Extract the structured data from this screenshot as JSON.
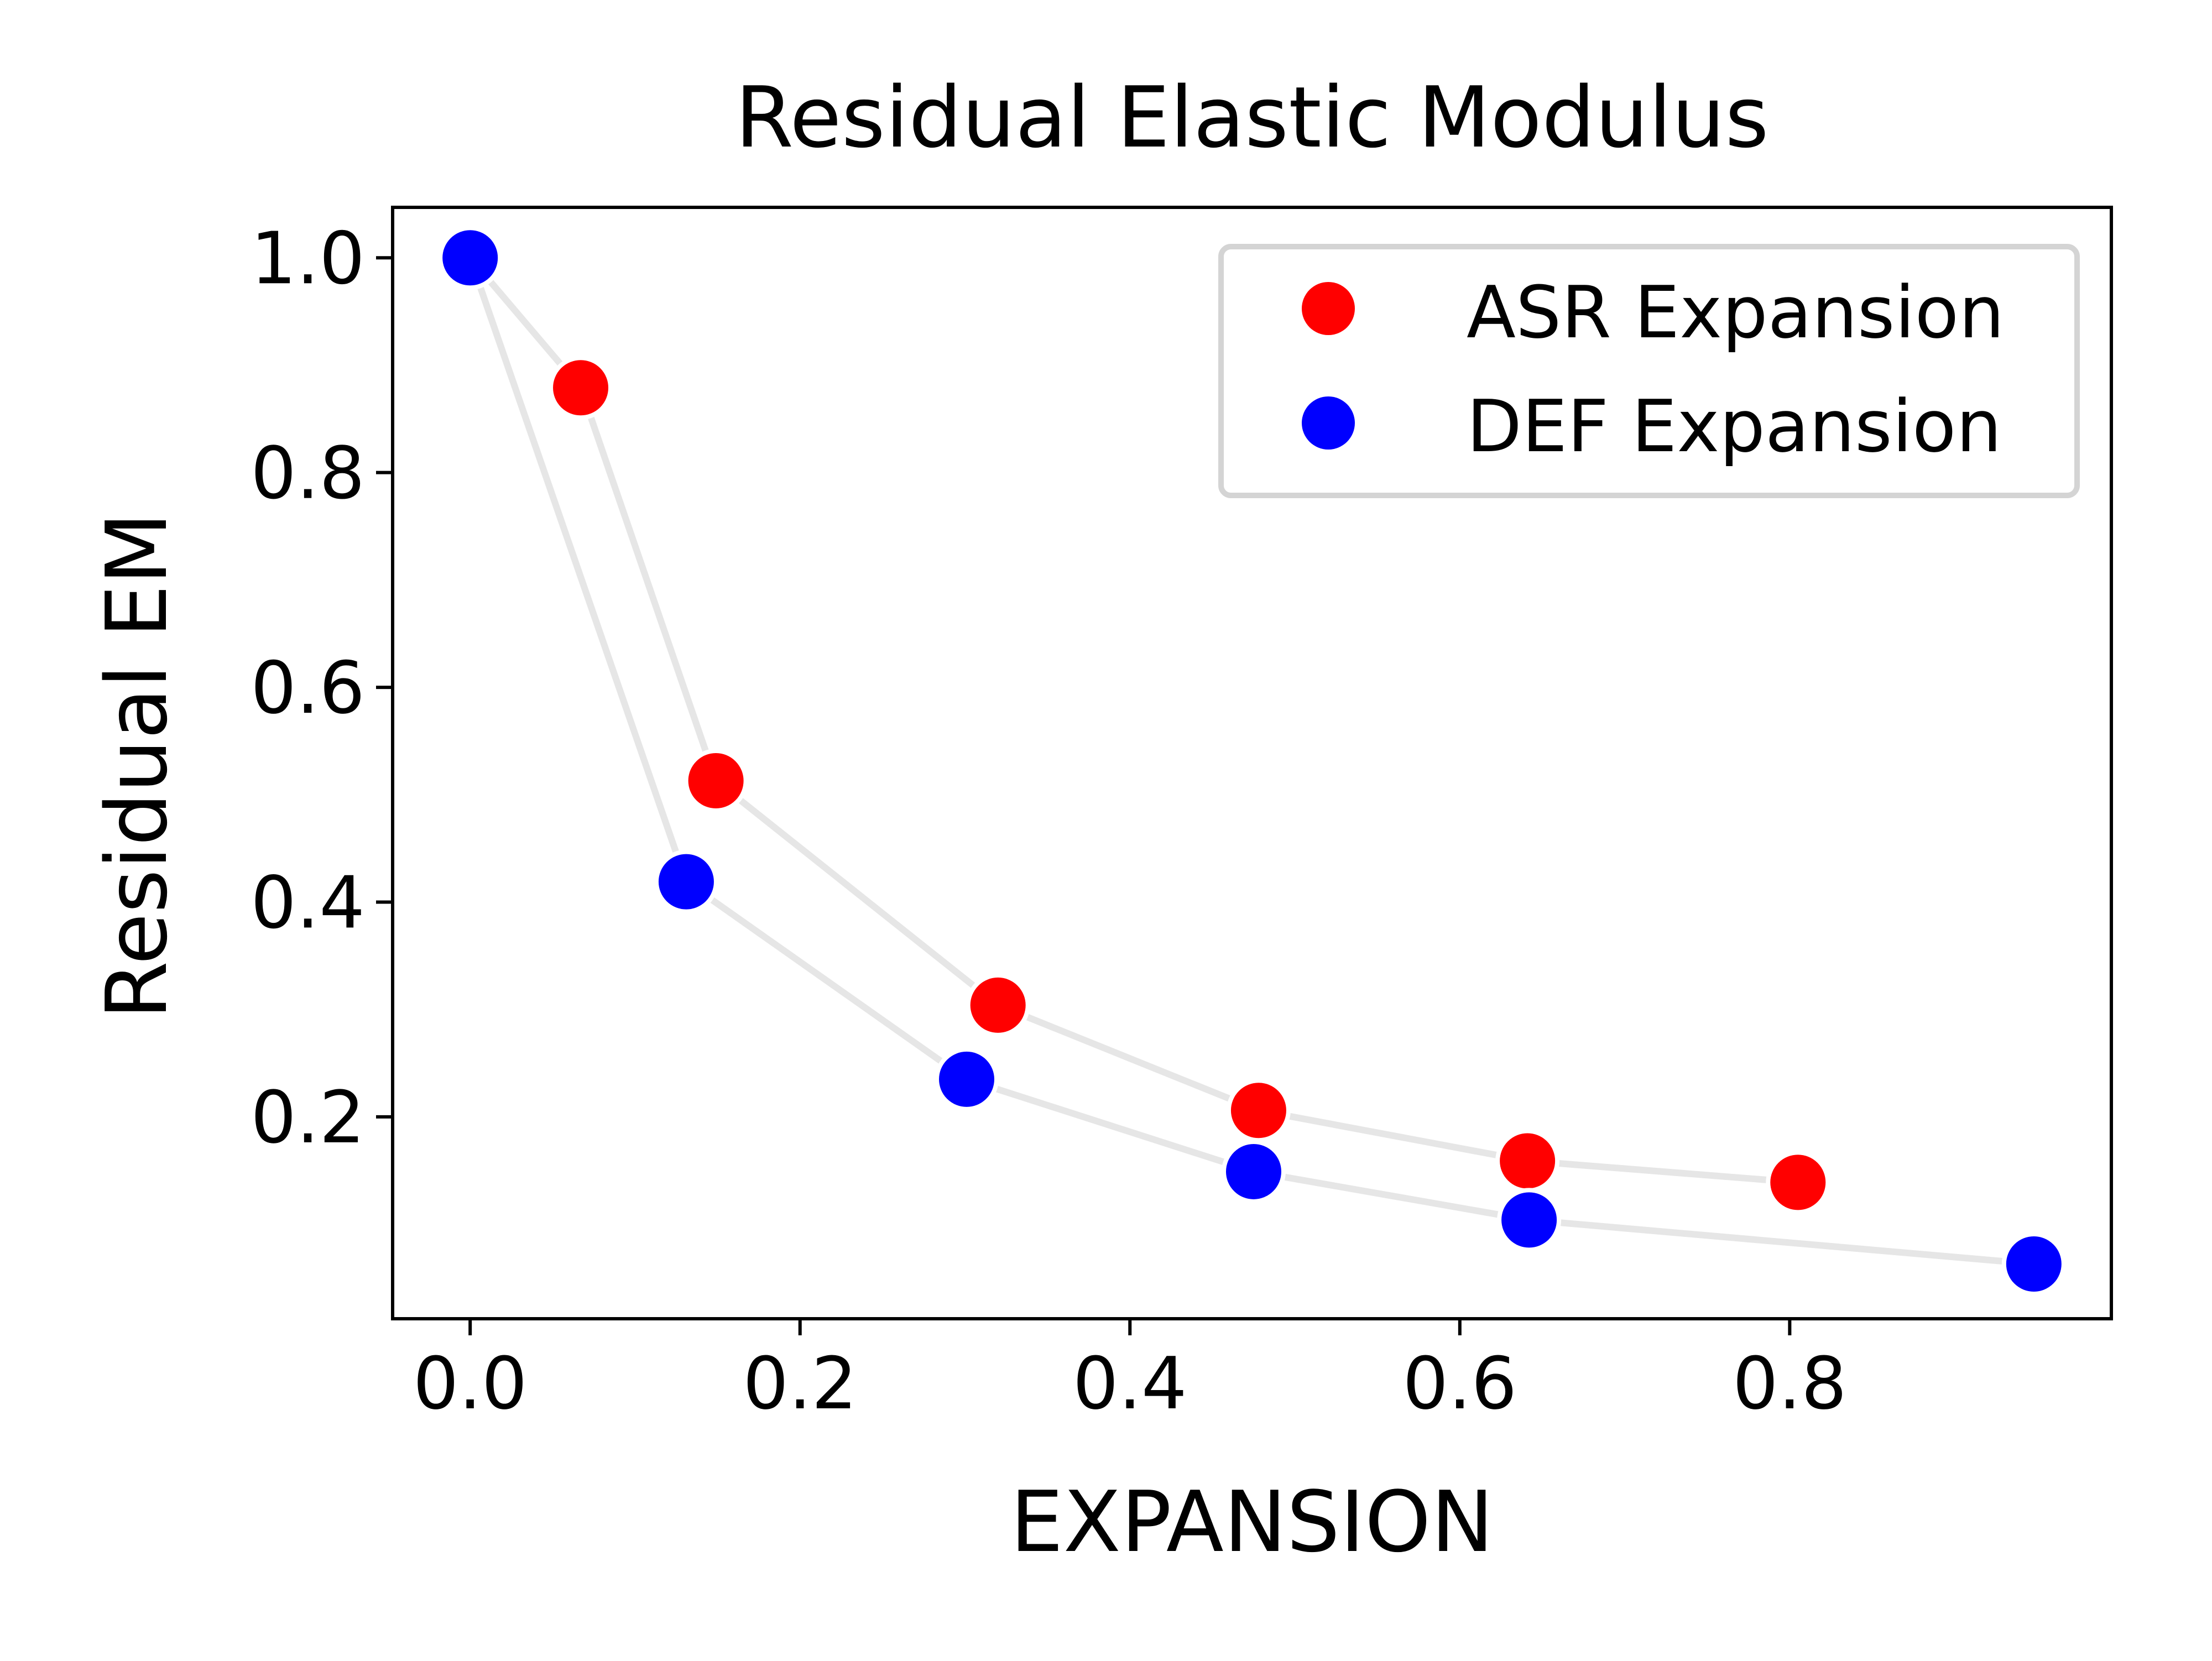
{
  "chart_data": {
    "type": "scatter",
    "title": "Residual Elastic Modulus",
    "xlabel": "EXPANSION",
    "ylabel": "Residual EM",
    "xlim": [
      -0.047,
      0.995
    ],
    "ylim": [
      0.012,
      1.047
    ],
    "x_ticks": [
      0.0,
      0.2,
      0.4,
      0.6,
      0.8
    ],
    "x_tick_labels": [
      "0.0",
      "0.2",
      "0.4",
      "0.6",
      "0.8"
    ],
    "y_ticks": [
      0.2,
      0.4,
      0.6,
      0.8,
      1.0
    ],
    "y_tick_labels": [
      "0.2",
      "0.4",
      "0.6",
      "0.8",
      "1.0"
    ],
    "grid": false,
    "legend_position": "top-right",
    "connecting_line_color": "#e6e6e6",
    "series": [
      {
        "name": "ASR Expansion",
        "color": "#ff0000",
        "x": [
          0.0,
          0.067,
          0.149,
          0.32,
          0.478,
          0.641,
          0.805
        ],
        "y": [
          1.0,
          0.879,
          0.513,
          0.304,
          0.206,
          0.159,
          0.139
        ]
      },
      {
        "name": "DEF Expansion",
        "color": "#0000ff",
        "x": [
          0.0,
          0.131,
          0.301,
          0.475,
          0.642,
          0.948
        ],
        "y": [
          1.0,
          0.419,
          0.235,
          0.149,
          0.104,
          0.063
        ]
      }
    ]
  }
}
